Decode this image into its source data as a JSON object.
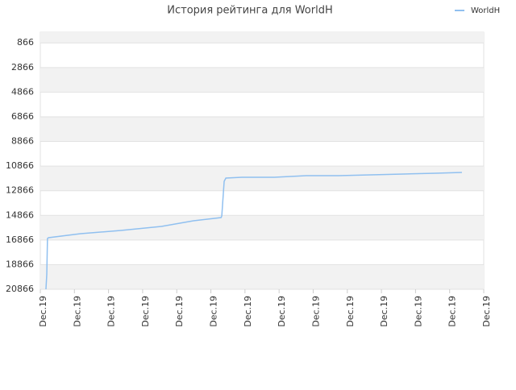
{
  "chart_data": {
    "type": "line",
    "title": "История рейтинга для WorldH",
    "xlim": [
      0,
      13
    ],
    "xticks": [
      {
        "value": 0,
        "label": "Dec.19"
      },
      {
        "value": 1,
        "label": "Dec.19"
      },
      {
        "value": 2,
        "label": "Dec.19"
      },
      {
        "value": 3,
        "label": "Dec.19"
      },
      {
        "value": 4,
        "label": "Dec.19"
      },
      {
        "value": 5,
        "label": "Dec.19"
      },
      {
        "value": 6,
        "label": "Dec.19"
      },
      {
        "value": 7,
        "label": "Dec.19"
      },
      {
        "value": 8,
        "label": "Dec.19"
      },
      {
        "value": 9,
        "label": "Dec.19"
      },
      {
        "value": 10,
        "label": "Dec.19"
      },
      {
        "value": 11,
        "label": "Dec.19"
      },
      {
        "value": 12,
        "label": "Dec.19"
      },
      {
        "value": 13,
        "label": "Dec.19"
      }
    ],
    "ylim": [
      0,
      20866
    ],
    "y_inverted": true,
    "yticks": [
      866,
      2866,
      4866,
      6866,
      8866,
      10866,
      12866,
      14866,
      16866,
      18866,
      20866
    ],
    "grid": true,
    "legend": "top-right",
    "series": [
      {
        "name": "WorldH",
        "color": "#90c0f0",
        "x": [
          0.165,
          0.19,
          0.21,
          0.24,
          1.18,
          2.36,
          3.55,
          4.49,
          5.3,
          5.32,
          5.39,
          5.44,
          5.91,
          6.86,
          7.8,
          8.75,
          9.69,
          10.64,
          11.58,
          12.36
        ],
        "values": [
          20866,
          19624,
          16745,
          16680,
          16353,
          16092,
          15765,
          15307,
          15045,
          14914,
          12101,
          11839,
          11774,
          11774,
          11643,
          11643,
          11578,
          11512,
          11447,
          11382
        ]
      }
    ]
  }
}
